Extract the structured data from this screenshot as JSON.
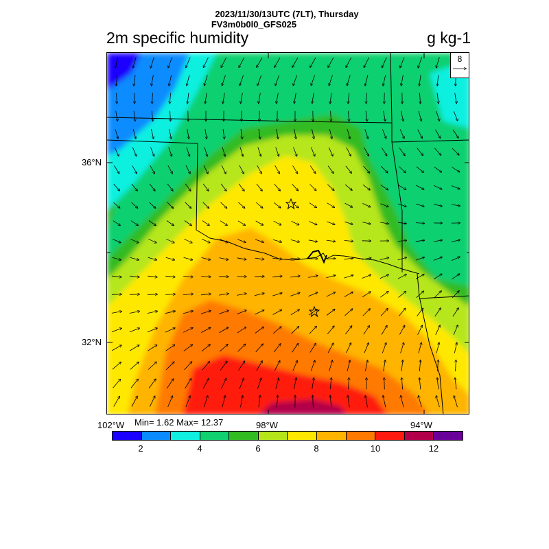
{
  "header": {
    "line1": "2023/11/30/13UTC (7LT), Thursday",
    "line2": "FV3m0b0l0_GFS025",
    "field_name": "2m specific humidity",
    "units": "g kg-1"
  },
  "reference_vector": {
    "value": "8"
  },
  "axes": {
    "lat_labels": [
      "36°N",
      "32°N"
    ],
    "lon_labels": [
      "102°W",
      "98°W",
      "94°W"
    ]
  },
  "stats": "Min= 1.62 Max= 12.37",
  "colorbar": {
    "colors": [
      "#1a00ff",
      "#0a8cff",
      "#10f0e0",
      "#10d070",
      "#33bb22",
      "#b6e61a",
      "#ffe800",
      "#ffb400",
      "#ff7a00",
      "#ff1a10",
      "#b2004a",
      "#6a009a"
    ],
    "tick_labels": [
      "2",
      "4",
      "6",
      "8",
      "10",
      "12"
    ]
  },
  "markers": [
    "star",
    "star"
  ],
  "chart_data": {
    "type": "heatmap",
    "title": "2m specific humidity",
    "units": "g kg-1",
    "valid_time": "2023/11/30/13UTC (7LT), Thursday",
    "model": "FV3m0b0l0_GFS025",
    "min": 1.62,
    "max": 12.37,
    "levels": [
      1,
      2,
      3,
      4,
      5,
      6,
      7,
      8,
      9,
      10,
      11,
      12,
      13
    ],
    "xlabel_ticks": [
      "102°W",
      "98°W",
      "94°W"
    ],
    "ylabel_ticks": [
      "36°N",
      "32°N"
    ],
    "reference_vector": 8,
    "wind_flow": "predominantly southerly in the south turning north-northeasterly in the north"
  }
}
